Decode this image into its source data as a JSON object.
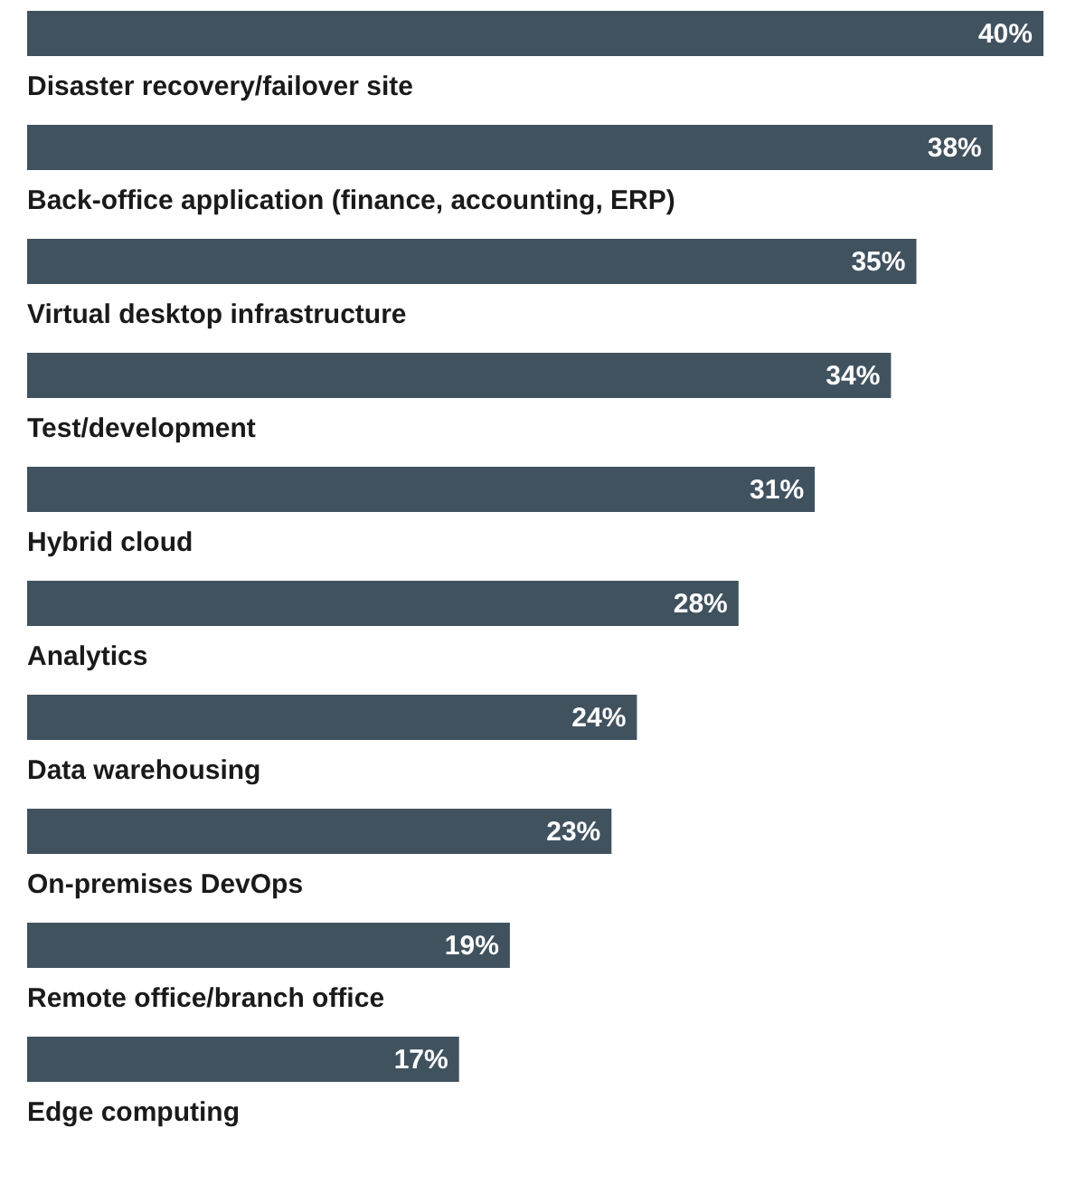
{
  "chart_data": {
    "type": "bar",
    "orientation": "horizontal",
    "categories": [
      "Disaster recovery/failover site",
      "Back-office application (finance, accounting, ERP)",
      "Virtual desktop infrastructure",
      "Test/development",
      "Hybrid cloud",
      "Analytics",
      "Data warehousing",
      "On-premises DevOps",
      "Remote office/branch office",
      "Edge computing"
    ],
    "values": [
      40,
      38,
      35,
      34,
      31,
      28,
      24,
      23,
      19,
      17
    ],
    "value_labels": [
      "40%",
      "38%",
      "35%",
      "34%",
      "31%",
      "28%",
      "24%",
      "23%",
      "19%",
      "17%"
    ],
    "color": "#41525f"
  }
}
